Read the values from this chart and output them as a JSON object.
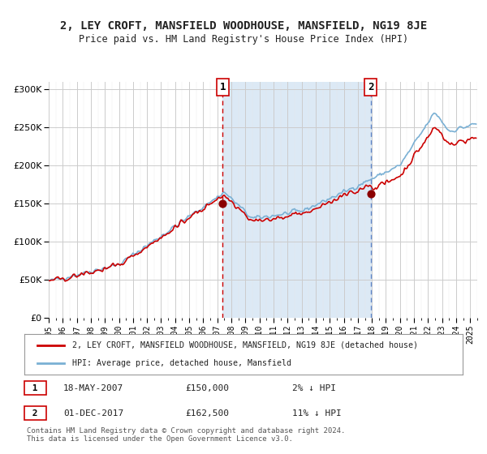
{
  "title": "2, LEY CROFT, MANSFIELD WOODHOUSE, MANSFIELD, NG19 8JE",
  "subtitle": "Price paid vs. HM Land Registry's House Price Index (HPI)",
  "legend_line1": "2, LEY CROFT, MANSFIELD WOODHOUSE, MANSFIELD, NG19 8JE (detached house)",
  "legend_line2": "HPI: Average price, detached house, Mansfield",
  "annotation1_label": "1",
  "annotation1_date": "18-MAY-2007",
  "annotation1_price": "£150,000",
  "annotation1_hpi": "2% ↓ HPI",
  "annotation1_date_num": 2007.38,
  "annotation1_value": 150000,
  "annotation2_label": "2",
  "annotation2_date": "01-DEC-2017",
  "annotation2_price": "£162,500",
  "annotation2_hpi": "11% ↓ HPI",
  "annotation2_date_num": 2017.92,
  "annotation2_value": 162500,
  "ylim": [
    0,
    310000
  ],
  "xlim_start": 1995.0,
  "xlim_end": 2025.5,
  "yticks": [
    0,
    50000,
    100000,
    150000,
    200000,
    250000,
    300000
  ],
  "ytick_labels": [
    "£0",
    "£50K",
    "£100K",
    "£150K",
    "£200K",
    "£250K",
    "£300K"
  ],
  "background_color": "#ffffff",
  "plot_bg_color": "#ffffff",
  "shade_color": "#dce9f5",
  "hpi_color": "#7ab0d4",
  "price_color": "#cc0000",
  "dot_color": "#8b0000",
  "vline1_color": "#cc0000",
  "vline2_color": "#4472c4",
  "copyright_text": "Contains HM Land Registry data © Crown copyright and database right 2024.\nThis data is licensed under the Open Government Licence v3.0.",
  "font_color": "#222222"
}
